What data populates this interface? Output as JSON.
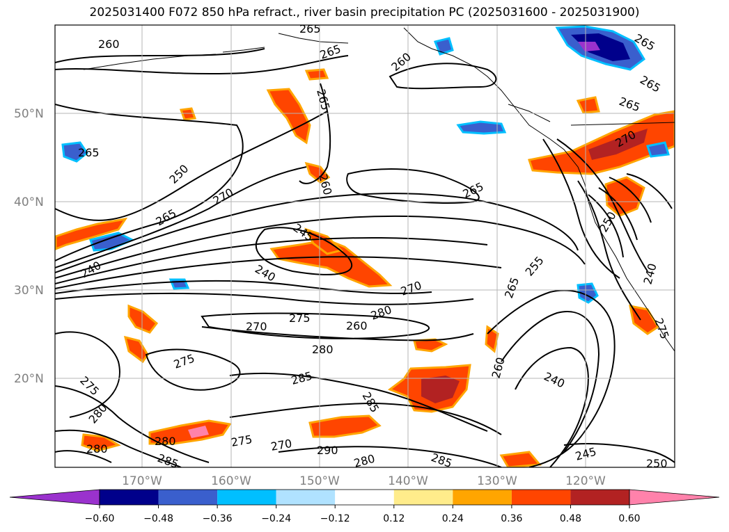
{
  "title": "2025031400 F072 850 hPa refract., river basin precipitation PC (2025031600 - 2025031900)",
  "lat_labels": [
    "50°N",
    "40°N",
    "30°N",
    "20°N"
  ],
  "lon_labels": [
    "170°W",
    "160°W",
    "150°W",
    "140°W",
    "130°W",
    "120°W"
  ],
  "contour_labels": [
    "260",
    "265",
    "265",
    "260",
    "265",
    "265",
    "265",
    "265",
    "270",
    "250",
    "265",
    "260",
    "265",
    "245",
    "240",
    "240",
    "270",
    "275",
    "280",
    "260",
    "270",
    "270",
    "280",
    "275",
    "285",
    "275",
    "280",
    "280",
    "280",
    "285",
    "275",
    "270",
    "290",
    "285",
    "260",
    "280",
    "285",
    "240",
    "245",
    "250",
    "240",
    "250",
    "265",
    "265",
    "275",
    "255"
  ],
  "colorbar": {
    "ticks": [
      "−0.60",
      "−0.48",
      "−0.36",
      "−0.24",
      "−0.12",
      "0.12",
      "0.24",
      "0.36",
      "0.48",
      "0.60"
    ],
    "colors": [
      "#9a32cd",
      "#00008b",
      "#3a5fcd",
      "#00bfff",
      "#b0e2ff",
      "#ffffff",
      "#ffec8b",
      "#ffa500",
      "#ff4500",
      "#b22222",
      "#ff82ab"
    ]
  },
  "colors": {
    "positive_strong": "#ff4500",
    "positive_mid": "#ffa500",
    "positive_weak": "#ffec8b",
    "negative_strong": "#00008b",
    "negative_mid": "#3a5fcd",
    "negative_light": "#00bfff",
    "gridline": "#b4b4b4"
  }
}
